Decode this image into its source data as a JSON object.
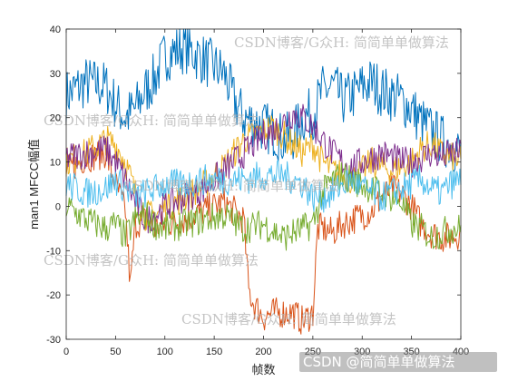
{
  "chart_data": {
    "type": "line",
    "xlabel": "帧数",
    "ylabel": "man1 MFCC幅值",
    "xlim": [
      0,
      400
    ],
    "ylim": [
      -30,
      40
    ],
    "xticks": [
      0,
      50,
      100,
      150,
      200,
      250,
      300,
      350,
      400
    ],
    "yticks": [
      -30,
      -20,
      -10,
      0,
      10,
      20,
      30,
      40
    ],
    "grid": false,
    "legend": "none",
    "n_frames": 400,
    "series": [
      {
        "color": "#0072BD",
        "x": [
          0,
          20,
          40,
          50,
          60,
          70,
          80,
          90,
          100,
          120,
          140,
          160,
          170,
          180,
          190,
          200,
          210,
          220,
          230,
          240,
          250,
          260,
          270,
          280,
          290,
          300,
          310,
          320,
          330,
          340,
          350,
          360,
          370,
          380,
          390,
          400
        ],
        "y": [
          25,
          28,
          27,
          23,
          20,
          22,
          26,
          29,
          34,
          36,
          33,
          30,
          24,
          20,
          19,
          18,
          17,
          15,
          16,
          20,
          21,
          26,
          27,
          24,
          25,
          27,
          28,
          26,
          25,
          24,
          22,
          19,
          17,
          15,
          14,
          12
        ]
      },
      {
        "color": "#D95319",
        "x": [
          0,
          20,
          40,
          50,
          60,
          65,
          70,
          80,
          90,
          100,
          120,
          140,
          160,
          170,
          180,
          185,
          190,
          200,
          210,
          220,
          230,
          240,
          250,
          255,
          260,
          270,
          280,
          290,
          300,
          310,
          320,
          330,
          340,
          350,
          360,
          370,
          380,
          390,
          400
        ],
        "y": [
          8,
          11,
          12,
          5,
          -1,
          -18,
          -4,
          -3,
          -5,
          -4,
          -3,
          -1,
          1,
          -1,
          -3,
          -19,
          -22,
          -25,
          -24,
          -24,
          -24,
          -26,
          -24,
          -5,
          -5,
          -6,
          -4,
          -3,
          -2,
          -1,
          2,
          4,
          3,
          0,
          -4,
          -6,
          -7,
          -7,
          -6
        ]
      },
      {
        "color": "#EDB120",
        "x": [
          0,
          20,
          40,
          50,
          60,
          70,
          80,
          90,
          100,
          120,
          140,
          160,
          180,
          200,
          210,
          220,
          230,
          240,
          250,
          260,
          270,
          280,
          290,
          300,
          310,
          320,
          330,
          340,
          350,
          360,
          370,
          380,
          390,
          400
        ],
        "y": [
          10,
          12,
          15,
          14,
          10,
          3,
          -2,
          -2,
          0,
          2,
          5,
          9,
          15,
          17,
          18,
          16,
          14,
          12,
          14,
          10,
          8,
          7,
          6,
          8,
          10,
          9,
          8,
          9,
          10,
          13,
          14,
          12,
          11,
          10
        ]
      },
      {
        "color": "#7E2F8E",
        "x": [
          0,
          20,
          40,
          50,
          60,
          70,
          80,
          90,
          100,
          120,
          140,
          160,
          180,
          200,
          210,
          220,
          230,
          240,
          250,
          260,
          270,
          280,
          290,
          300,
          310,
          320,
          330,
          340,
          350,
          360,
          370,
          380,
          390,
          400
        ],
        "y": [
          11,
          12,
          13,
          10,
          6,
          1,
          -3,
          -2,
          0,
          2,
          4,
          8,
          12,
          16,
          17,
          19,
          21,
          20,
          18,
          15,
          12,
          10,
          9,
          10,
          11,
          12,
          11,
          10,
          10,
          11,
          12,
          11,
          12,
          12
        ]
      },
      {
        "color": "#77AC30",
        "x": [
          0,
          20,
          40,
          50,
          60,
          70,
          80,
          90,
          100,
          120,
          140,
          160,
          180,
          200,
          220,
          240,
          250,
          260,
          270,
          280,
          290,
          300,
          310,
          320,
          330,
          340,
          350,
          360,
          370,
          380,
          390,
          400
        ],
        "y": [
          0,
          -3,
          -5,
          -4,
          -7,
          -3,
          -2,
          -4,
          -5,
          -4,
          -3,
          -2,
          -5,
          -4,
          -7,
          -5,
          -4,
          3,
          6,
          7,
          6,
          5,
          4,
          3,
          2,
          1,
          -4,
          -5,
          -7,
          -6,
          -5,
          -5
        ]
      },
      {
        "color": "#4DBEEE",
        "x": [
          0,
          20,
          40,
          50,
          60,
          70,
          80,
          90,
          100,
          120,
          140,
          160,
          180,
          200,
          220,
          240,
          250,
          260,
          270,
          280,
          290,
          300,
          310,
          320,
          330,
          340,
          350,
          360,
          370,
          380,
          390,
          400
        ],
        "y": [
          5,
          3,
          4,
          6,
          4,
          2,
          3,
          4,
          5,
          5,
          6,
          6,
          6,
          7,
          7,
          5,
          2,
          2,
          3,
          5,
          6,
          4,
          3,
          2,
          3,
          4,
          5,
          6,
          4,
          3,
          5,
          6
        ]
      }
    ]
  },
  "watermarks": [
    "CSDN博客/G众H: 简简单单做算法",
    "CSDN博客/G众H: 简简单单做算法",
    "CSDN博客/G众H: 简简单单做算法",
    "CSDN博客/G众H: 简简单单做算法",
    "CSDN博客/G众H: 简简单单做算法"
  ],
  "corner_watermark": "CSDN @简简单单做算法"
}
